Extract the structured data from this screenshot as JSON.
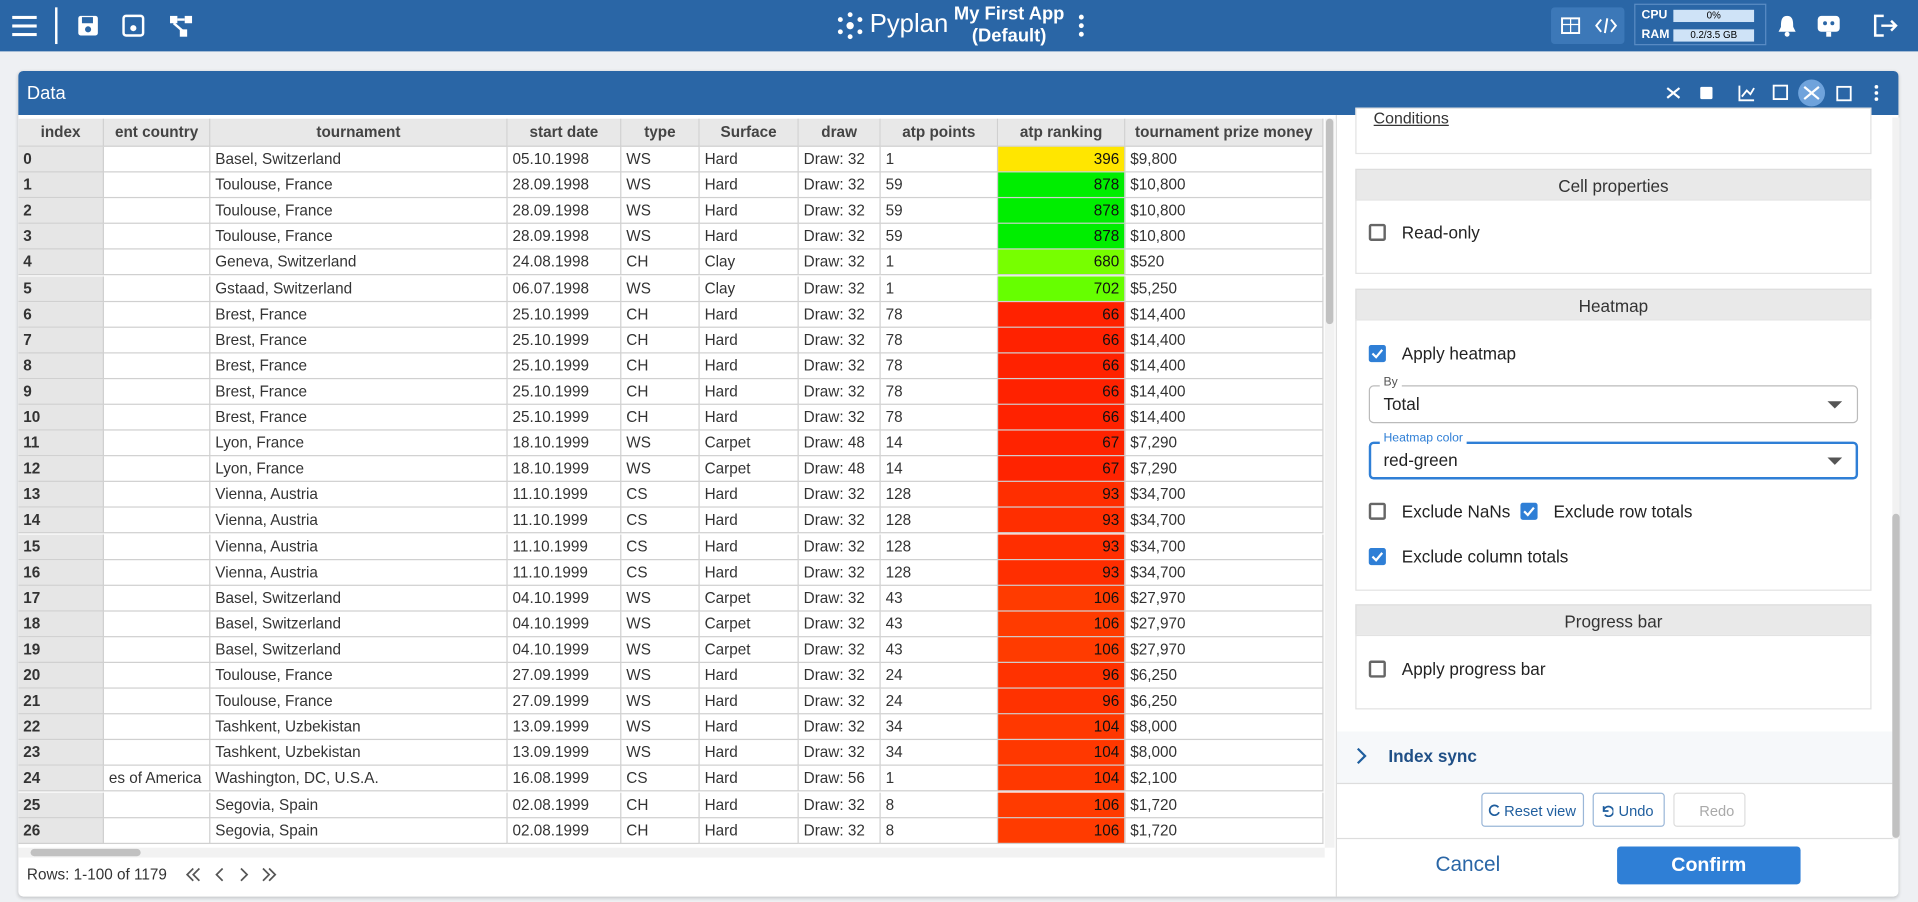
{
  "topbar": {
    "logo": "Pyplan",
    "app_name": "My First App",
    "app_version": "(Default)",
    "cpu_label": "CPU",
    "cpu_value": "0%",
    "ram_label": "RAM",
    "ram_value": "0.2/3.5 GB"
  },
  "panel": {
    "title": "Data"
  },
  "table": {
    "columns": [
      "index",
      "ent country",
      "tournament",
      "start date",
      "type",
      "Surface",
      "draw",
      "atp points",
      "atp ranking",
      "tournament prize money"
    ],
    "rows": [
      [
        0,
        null,
        "Basel, Switzerland",
        "05.10.1998",
        "WS",
        "Hard",
        "Draw: 32",
        1,
        396,
        "$9,800"
      ],
      [
        1,
        null,
        "Toulouse, France",
        "28.09.1998",
        "WS",
        "Hard",
        "Draw: 32",
        59,
        878,
        "$10,800"
      ],
      [
        2,
        null,
        "Toulouse, France",
        "28.09.1998",
        "WS",
        "Hard",
        "Draw: 32",
        59,
        878,
        "$10,800"
      ],
      [
        3,
        null,
        "Toulouse, France",
        "28.09.1998",
        "WS",
        "Hard",
        "Draw: 32",
        59,
        878,
        "$10,800"
      ],
      [
        4,
        null,
        "Geneva, Switzerland",
        "24.08.1998",
        "CH",
        "Clay",
        "Draw: 32",
        1,
        680,
        "$520"
      ],
      [
        5,
        null,
        "Gstaad, Switzerland",
        "06.07.1998",
        "WS",
        "Clay",
        "Draw: 32",
        1,
        702,
        "$5,250"
      ],
      [
        6,
        null,
        "Brest, France",
        "25.10.1999",
        "CH",
        "Hard",
        "Draw: 32",
        78,
        66,
        "$14,400"
      ],
      [
        7,
        null,
        "Brest, France",
        "25.10.1999",
        "CH",
        "Hard",
        "Draw: 32",
        78,
        66,
        "$14,400"
      ],
      [
        8,
        null,
        "Brest, France",
        "25.10.1999",
        "CH",
        "Hard",
        "Draw: 32",
        78,
        66,
        "$14,400"
      ],
      [
        9,
        null,
        "Brest, France",
        "25.10.1999",
        "CH",
        "Hard",
        "Draw: 32",
        78,
        66,
        "$14,400"
      ],
      [
        10,
        null,
        "Brest, France",
        "25.10.1999",
        "CH",
        "Hard",
        "Draw: 32",
        78,
        66,
        "$14,400"
      ],
      [
        11,
        null,
        "Lyon, France",
        "18.10.1999",
        "WS",
        "Carpet",
        "Draw: 48",
        14,
        67,
        "$7,290"
      ],
      [
        12,
        null,
        "Lyon, France",
        "18.10.1999",
        "WS",
        "Carpet",
        "Draw: 48",
        14,
        67,
        "$7,290"
      ],
      [
        13,
        null,
        "Vienna, Austria",
        "11.10.1999",
        "CS",
        "Hard",
        "Draw: 32",
        128,
        93,
        "$34,700"
      ],
      [
        14,
        null,
        "Vienna, Austria",
        "11.10.1999",
        "CS",
        "Hard",
        "Draw: 32",
        128,
        93,
        "$34,700"
      ],
      [
        15,
        null,
        "Vienna, Austria",
        "11.10.1999",
        "CS",
        "Hard",
        "Draw: 32",
        128,
        93,
        "$34,700"
      ],
      [
        16,
        null,
        "Vienna, Austria",
        "11.10.1999",
        "CS",
        "Hard",
        "Draw: 32",
        128,
        93,
        "$34,700"
      ],
      [
        17,
        null,
        "Basel, Switzerland",
        "04.10.1999",
        "WS",
        "Carpet",
        "Draw: 32",
        43,
        106,
        "$27,970"
      ],
      [
        18,
        null,
        "Basel, Switzerland",
        "04.10.1999",
        "WS",
        "Carpet",
        "Draw: 32",
        43,
        106,
        "$27,970"
      ],
      [
        19,
        null,
        "Basel, Switzerland",
        "04.10.1999",
        "WS",
        "Carpet",
        "Draw: 32",
        43,
        106,
        "$27,970"
      ],
      [
        20,
        null,
        "Toulouse, France",
        "27.09.1999",
        "WS",
        "Hard",
        "Draw: 32",
        24,
        96,
        "$6,250"
      ],
      [
        21,
        null,
        "Toulouse, France",
        "27.09.1999",
        "WS",
        "Hard",
        "Draw: 32",
        24,
        96,
        "$6,250"
      ],
      [
        22,
        null,
        "Tashkent, Uzbekistan",
        "13.09.1999",
        "WS",
        "Hard",
        "Draw: 32",
        34,
        104,
        "$8,000"
      ],
      [
        23,
        null,
        "Tashkent, Uzbekistan",
        "13.09.1999",
        "WS",
        "Hard",
        "Draw: 32",
        34,
        104,
        "$8,000"
      ],
      [
        24,
        "es of America",
        "Washington, DC, U.S.A.",
        "16.08.1999",
        "CS",
        "Hard",
        "Draw: 56",
        1,
        104,
        "$2,100"
      ],
      [
        25,
        null,
        "Segovia, Spain",
        "02.08.1999",
        "CH",
        "Hard",
        "Draw: 32",
        8,
        106,
        "$1,720"
      ],
      [
        26,
        null,
        "Segovia, Spain",
        "02.08.1999",
        "CH",
        "Hard",
        "Draw: 32",
        8,
        106,
        "$1,720"
      ]
    ],
    "heat_colors": [
      "#ffe600",
      "#00ee00",
      "#00ee00",
      "#00ee00",
      "#77ff00",
      "#66ff00",
      "#ff2200",
      "#ff2200",
      "#ff2200",
      "#ff2200",
      "#ff2200",
      "#ff2300",
      "#ff2300",
      "#ff2e00",
      "#ff2e00",
      "#ff2e00",
      "#ff2e00",
      "#ff3b00",
      "#ff3b00",
      "#ff3b00",
      "#ff3200",
      "#ff3200",
      "#ff3800",
      "#ff3800",
      "#ff3800",
      "#ff3b00",
      "#ff3b00"
    ]
  },
  "footer": {
    "rows_info": "Rows: 1-100 of 1179"
  },
  "settings": {
    "conditions_link": "Conditions",
    "cell_properties": {
      "title": "Cell properties",
      "read_only": {
        "label": "Read-only",
        "checked": false
      }
    },
    "heatmap": {
      "title": "Heatmap",
      "apply": {
        "label": "Apply heatmap",
        "checked": true
      },
      "by_label": "By",
      "by_value": "Total",
      "color_label": "Heatmap color",
      "color_value": "red-green",
      "exclude_nans": {
        "label": "Exclude NaNs",
        "checked": false
      },
      "exclude_row_totals": {
        "label": "Exclude row totals",
        "checked": true
      },
      "exclude_column_totals": {
        "label": "Exclude column totals",
        "checked": true
      }
    },
    "progress_bar": {
      "title": "Progress bar",
      "apply": {
        "label": "Apply progress bar",
        "checked": false
      }
    },
    "index_sync": "Index sync",
    "buttons": {
      "reset": "Reset view",
      "undo": "Undo",
      "redo": "Redo",
      "cancel": "Cancel",
      "confirm": "Confirm"
    }
  }
}
